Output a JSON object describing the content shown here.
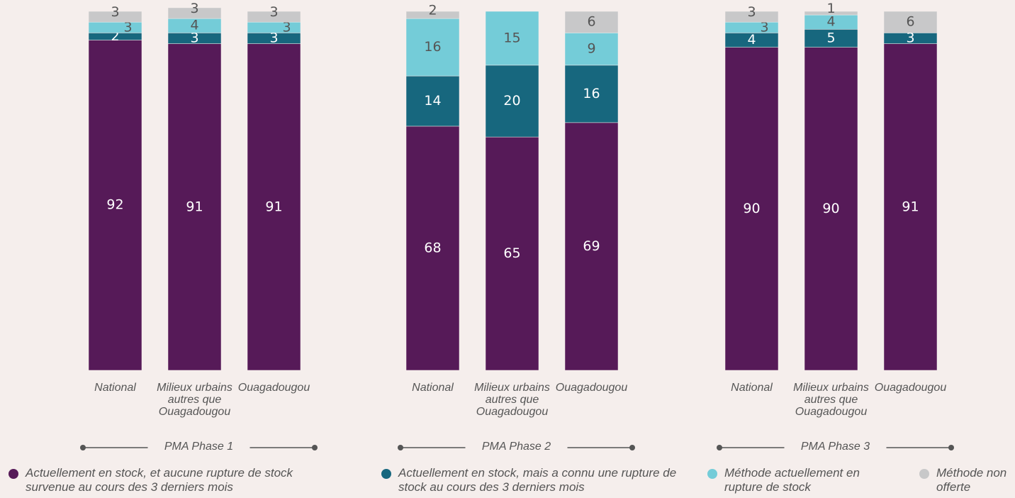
{
  "chart_data": {
    "type": "stacked_bar",
    "groups": [
      "PMA Phase 1",
      "PMA Phase 2",
      "PMA Phase 3"
    ],
    "categories": [
      [
        "National",
        "Milieux urbains autres que Ouagadougou",
        "Ouagadougou"
      ],
      [
        "National",
        "Milieux urbains autres que Ouagadougou",
        "Ouagadougou"
      ],
      [
        "National",
        "Milieux urbains autres que Ouagadougou",
        "Ouagadougou"
      ]
    ],
    "ylim": [
      0,
      100
    ],
    "series": [
      {
        "name": "Actuellement en stock, et aucune rupture de stock survenue au cours des 3 derniers mois",
        "color": "#561a58",
        "label_color": "#ffffff",
        "values": [
          [
            92,
            91,
            91
          ],
          [
            68,
            65,
            69
          ],
          [
            90,
            90,
            91
          ]
        ]
      },
      {
        "name": "Actuellement en stock, mais a connu une rupture de stock au cours des 3 derniers mois",
        "color": "#17677e",
        "label_color": "#ffffff",
        "values": [
          [
            2,
            3,
            3
          ],
          [
            14,
            20,
            16
          ],
          [
            4,
            5,
            3
          ]
        ]
      },
      {
        "name": "Méthode actuellement en rupture de stock",
        "color": "#74ccd8",
        "label_color": "#555555",
        "values": [
          [
            3,
            4,
            3
          ],
          [
            16,
            15,
            9
          ],
          [
            3,
            4,
            null
          ]
        ]
      },
      {
        "name": "Méthode non offerte",
        "color": "#c8c8c9",
        "label_color": "#555555",
        "values": [
          [
            3,
            3,
            3
          ],
          [
            2,
            null,
            6
          ],
          [
            3,
            1,
            6
          ]
        ]
      }
    ]
  }
}
